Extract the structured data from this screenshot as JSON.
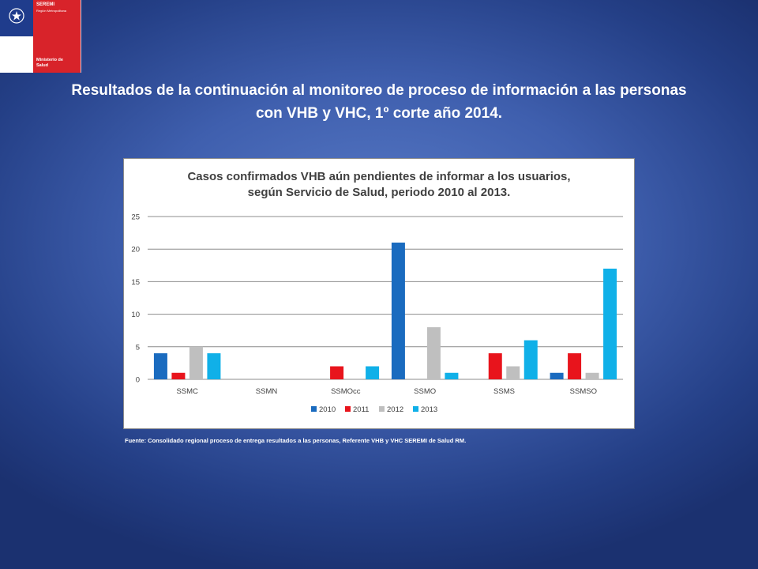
{
  "logo": {
    "brand": "SEREMI",
    "region": "Región Metropolitana",
    "ministry": "Ministerio de Salud"
  },
  "slide_title": "Resultados de la continuación al monitoreo de proceso de información a las personas con VHB y VHC, 1º corte año 2014.",
  "chart_data": {
    "type": "bar",
    "title": "Casos confirmados VHB aún pendientes de informar a los usuarios, según Servicio de Salud, periodo 2010 al 2013.",
    "categories": [
      "SSMC",
      "SSMN",
      "SSMOcc",
      "SSMO",
      "SSMS",
      "SSMSO"
    ],
    "series": [
      {
        "name": "2010",
        "color": "#1a6bbf",
        "values": [
          4,
          0,
          0,
          21,
          0,
          1
        ]
      },
      {
        "name": "2011",
        "color": "#e8141c",
        "values": [
          1,
          0,
          2,
          0,
          4,
          4
        ]
      },
      {
        "name": "2012",
        "color": "#bfbfbf",
        "values": [
          5,
          0,
          0,
          8,
          2,
          1
        ]
      },
      {
        "name": "2013",
        "color": "#10b0e8",
        "values": [
          4,
          0,
          2,
          1,
          6,
          17
        ]
      }
    ],
    "yticks": [
      0,
      5,
      10,
      15,
      20,
      25
    ],
    "ylim": [
      0,
      25
    ],
    "grid": true,
    "legend": "bottom"
  },
  "source": "Fuente: Consolidado regional proceso de entrega resultados a las personas, Referente VHB y VHC SEREMI de Salud RM."
}
